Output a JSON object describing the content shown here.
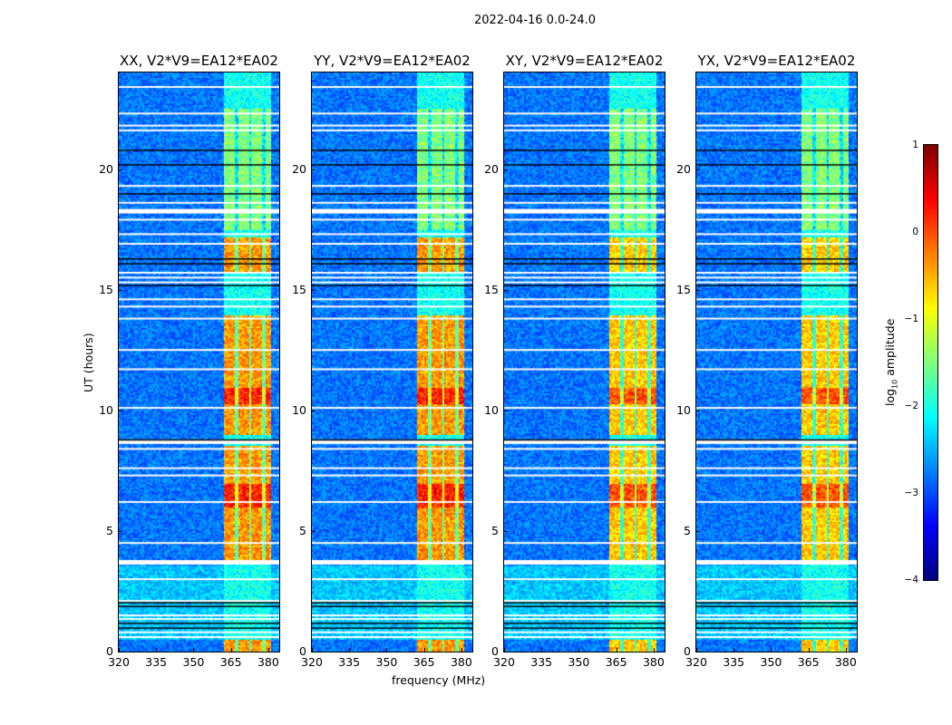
{
  "chart_data": {
    "type": "heatmap",
    "title": "2022-04-16 0.0-24.0",
    "xlabel": "frequency (MHz)",
    "ylabel": "UT (hours)",
    "xlim": [
      320,
      384.4
    ],
    "ylim": [
      0,
      24
    ],
    "xticks": [
      "320",
      "335",
      "350",
      "365",
      "380"
    ],
    "xtick_values": [
      320,
      335,
      350,
      365,
      380
    ],
    "yticks": [
      "0",
      "5",
      "10",
      "15",
      "20"
    ],
    "ytick_values": [
      0,
      5,
      10,
      15,
      20
    ],
    "panels": [
      {
        "title": "XX, V2*V9=EA12*EA02"
      },
      {
        "title": "YY, V2*V9=EA12*EA02"
      },
      {
        "title": "XY, V2*V9=EA12*EA02"
      },
      {
        "title": "YX, V2*V9=EA12*EA02"
      }
    ],
    "signal_band_mhz": [
      362,
      381
    ],
    "flagged_hours": [
      23.4,
      22.3,
      21.8,
      21.6,
      19.3,
      18.6,
      18.25,
      17.9,
      17.3,
      16.9,
      15.7,
      15.5,
      15.3,
      14.6,
      14.3,
      13.8,
      12.5,
      11.7,
      10.1,
      8.7,
      8.4,
      7.6,
      7.3,
      6.2,
      4.5,
      3.7,
      3.0,
      2.1,
      1.5,
      1.35,
      0.8,
      0.6
    ],
    "dark_hours": [
      20.8,
      20.2,
      19.0,
      16.3,
      16.1,
      15.2,
      8.8,
      2.05,
      1.9,
      1.2,
      1.0
    ],
    "colorbar": {
      "label_prefix": "log",
      "label_sub": "10",
      "label_suffix": " amplitude",
      "range": [
        -4,
        1
      ],
      "ticks": [
        "1",
        "0",
        "−1",
        "−2",
        "−3",
        "−4"
      ],
      "tick_values": [
        1,
        0,
        -1,
        -2,
        -3,
        -4
      ],
      "colormap": "jet"
    }
  }
}
